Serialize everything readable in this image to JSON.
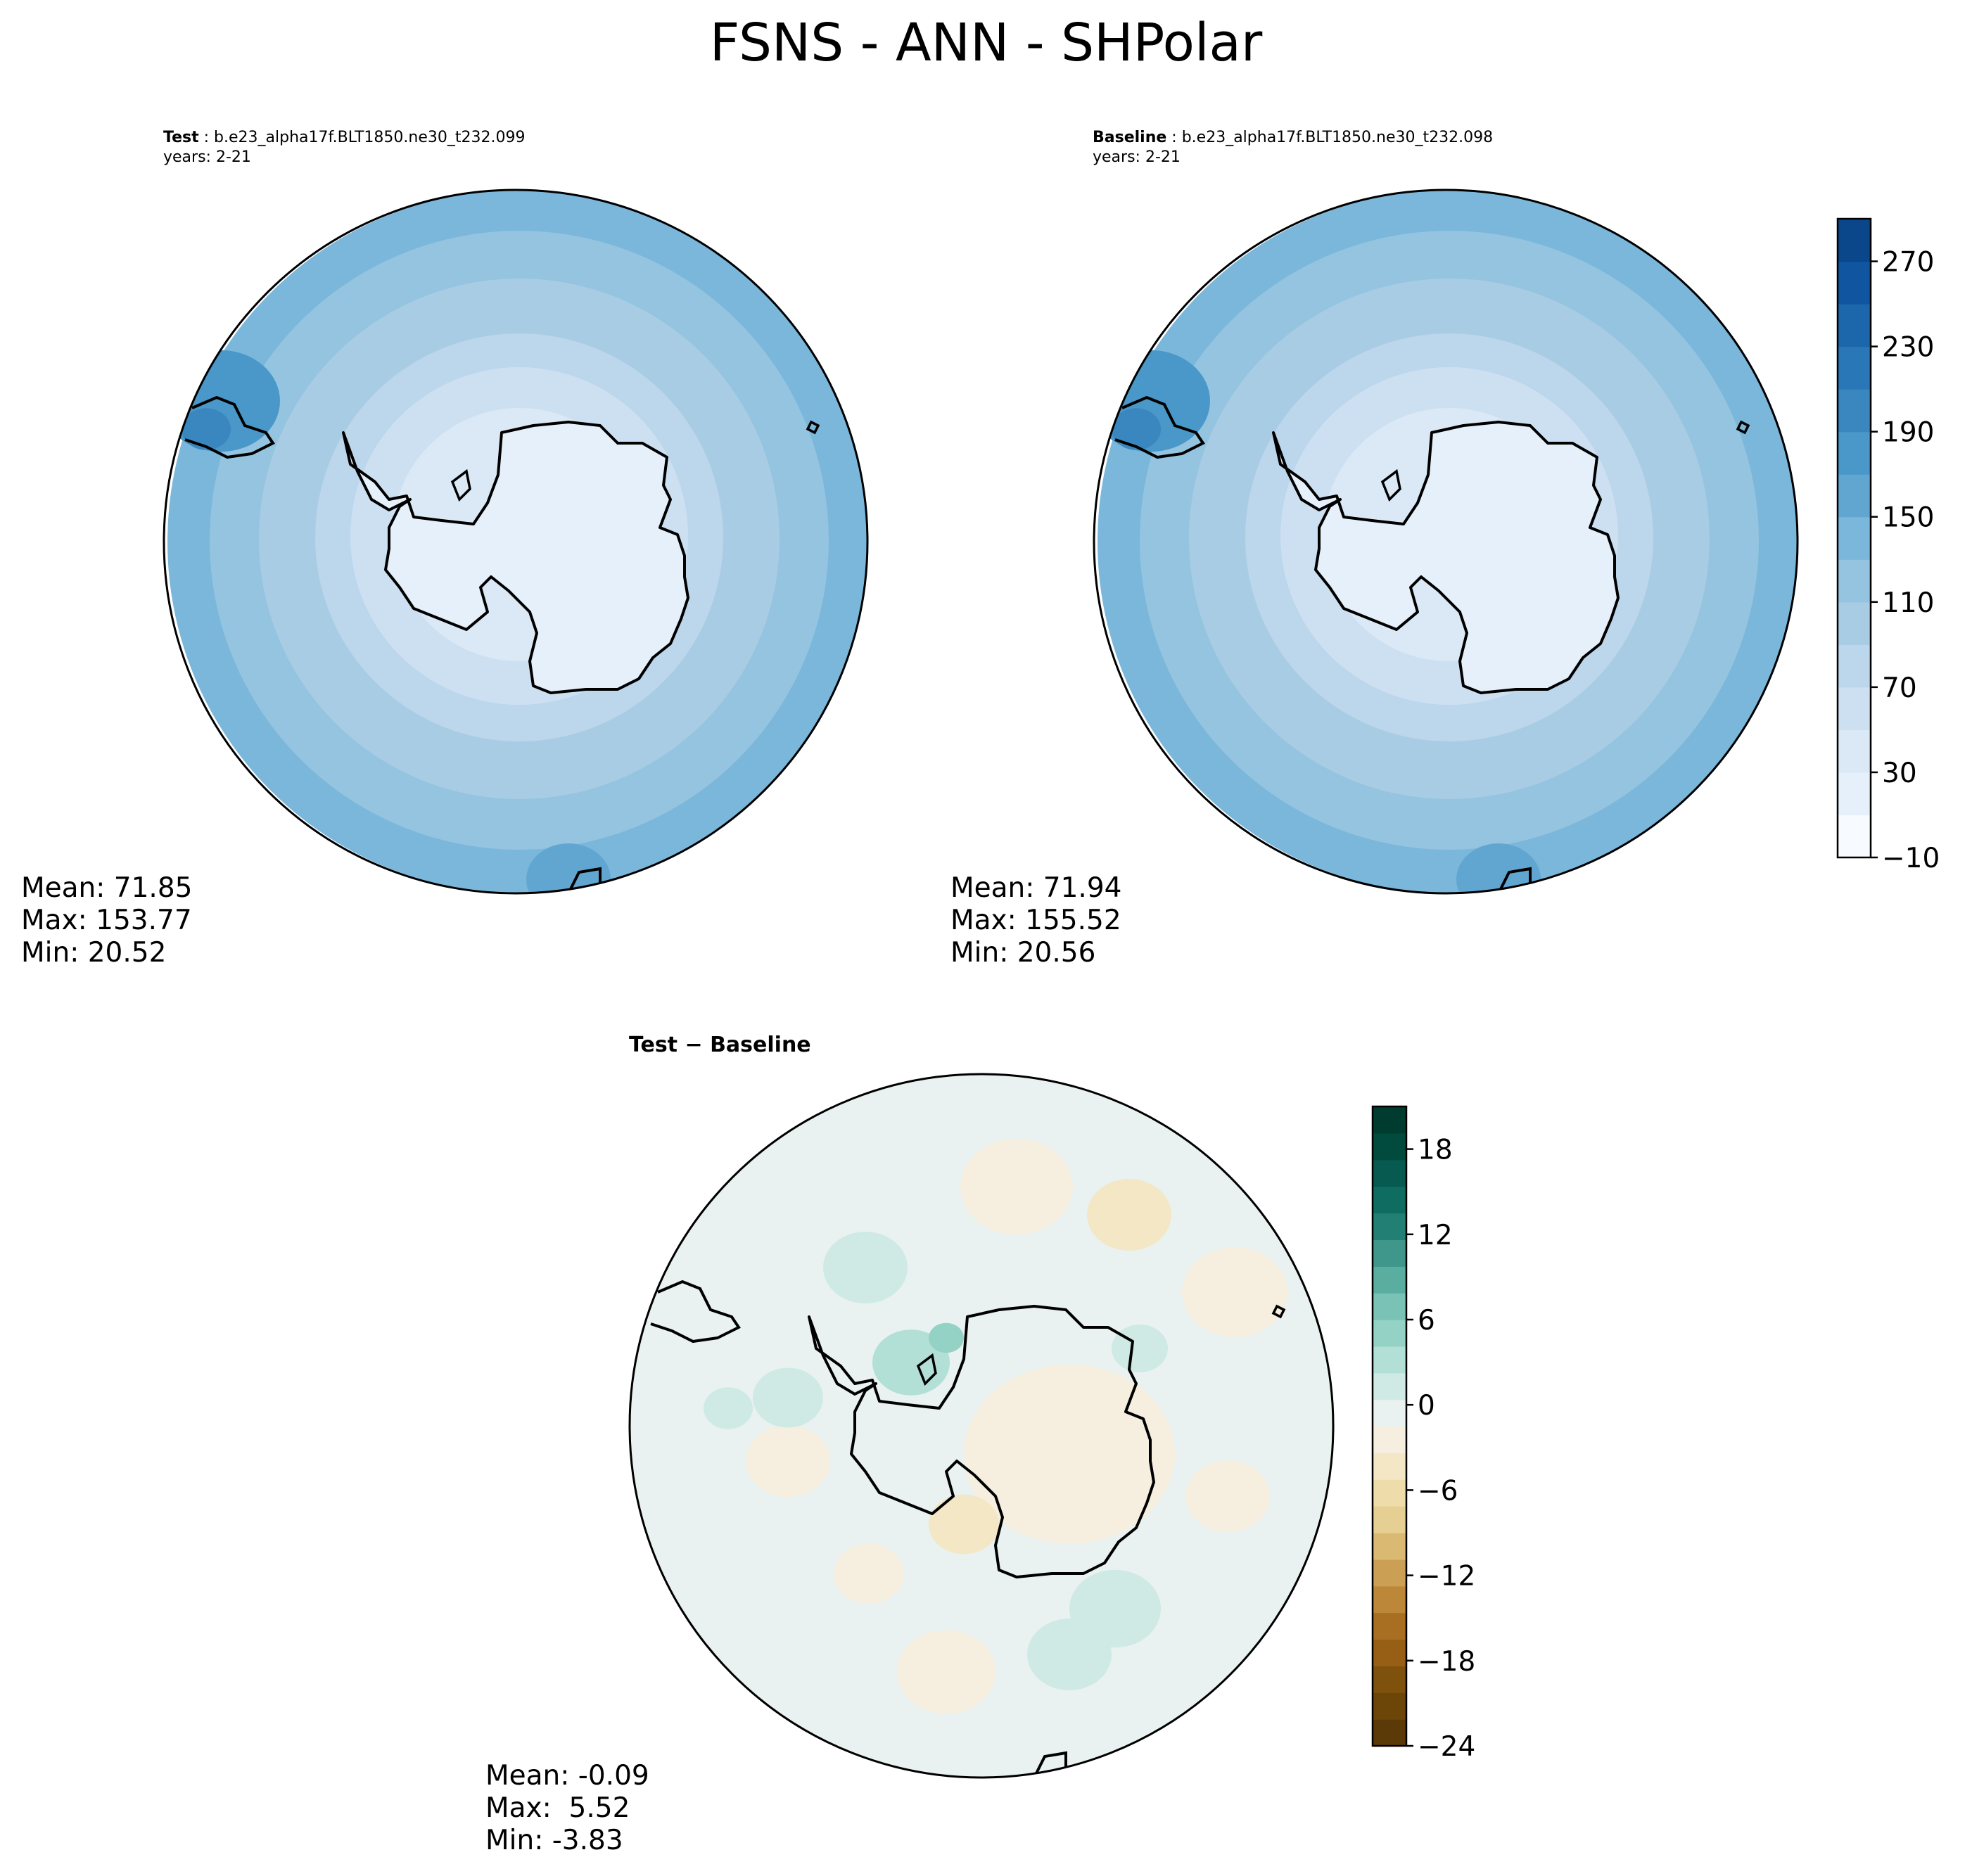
{
  "figure": {
    "title": "FSNS - ANN - SHPolar"
  },
  "chart_data": [
    {
      "type": "heatmap",
      "panel": "test",
      "label_bold": "Test",
      "case": "b.e23_alpha17f.BLT1850.ne30_t232.099",
      "years": "years: 2-21",
      "stats": {
        "mean": "Mean: 71.85",
        "max": "Max: 153.77",
        "min": "Min: 20.52"
      },
      "values": {
        "mean": 71.85,
        "max": 153.77,
        "min": 20.52
      }
    },
    {
      "type": "heatmap",
      "panel": "baseline",
      "label_bold": "Baseline",
      "case": "b.e23_alpha17f.BLT1850.ne30_t232.098",
      "years": "years: 2-21",
      "stats": {
        "mean": "Mean: 71.94",
        "max": "Max: 155.52",
        "min": "Min: 20.56"
      },
      "values": {
        "mean": 71.94,
        "max": 155.52,
        "min": 20.56
      },
      "colorbar": {
        "colormap": "Blues",
        "range": [
          -10,
          290
        ],
        "ticks": [
          -10,
          30,
          70,
          110,
          150,
          190,
          230,
          270
        ],
        "tick_labels": [
          "−10",
          "30",
          "70",
          "110",
          "150",
          "190",
          "230",
          "270"
        ]
      }
    },
    {
      "type": "heatmap",
      "panel": "difference",
      "title_a": "Test",
      "title_sep": " − ",
      "title_b": "Baseline",
      "stats": {
        "mean": "Mean: -0.09",
        "max": "Max:  5.52",
        "min": "Min: -3.83"
      },
      "values": {
        "mean": -0.09,
        "max": 5.52,
        "min": -3.83
      },
      "colorbar": {
        "colormap": "BrBG",
        "range": [
          -24,
          21
        ],
        "ticks": [
          -24,
          -18,
          -12,
          -6,
          0,
          6,
          12,
          18
        ],
        "tick_labels": [
          "−24",
          "−18",
          "−12",
          "−6",
          "0",
          "6",
          "12",
          "18"
        ]
      }
    }
  ],
  "colors": {
    "blues": [
      "#f7fbff",
      "#e6f0fa",
      "#dbe9f6",
      "#cde0f2",
      "#bcd6ec",
      "#a9cce5",
      "#94c4df",
      "#7ab7da",
      "#61a6d1",
      "#4a98c9",
      "#3a87c0",
      "#2a77b7",
      "#1c66ab",
      "#0f559f",
      "#0a468a",
      "#083a75"
    ],
    "brbg": [
      "#5c3a07",
      "#6c4609",
      "#7e520c",
      "#965f15",
      "#a86e22",
      "#bc8739",
      "#cba055",
      "#dab973",
      "#e6cf92",
      "#eedcab",
      "#f3e7c5",
      "#f6efe0",
      "#e9f2f0",
      "#cfeae4",
      "#b2e0d7",
      "#94d2c6",
      "#79c2b5",
      "#5aaea0",
      "#3f978b",
      "#227f74",
      "#0f6c61",
      "#075a4f",
      "#004b3e",
      "#003b30"
    ],
    "coast": "#000000"
  }
}
